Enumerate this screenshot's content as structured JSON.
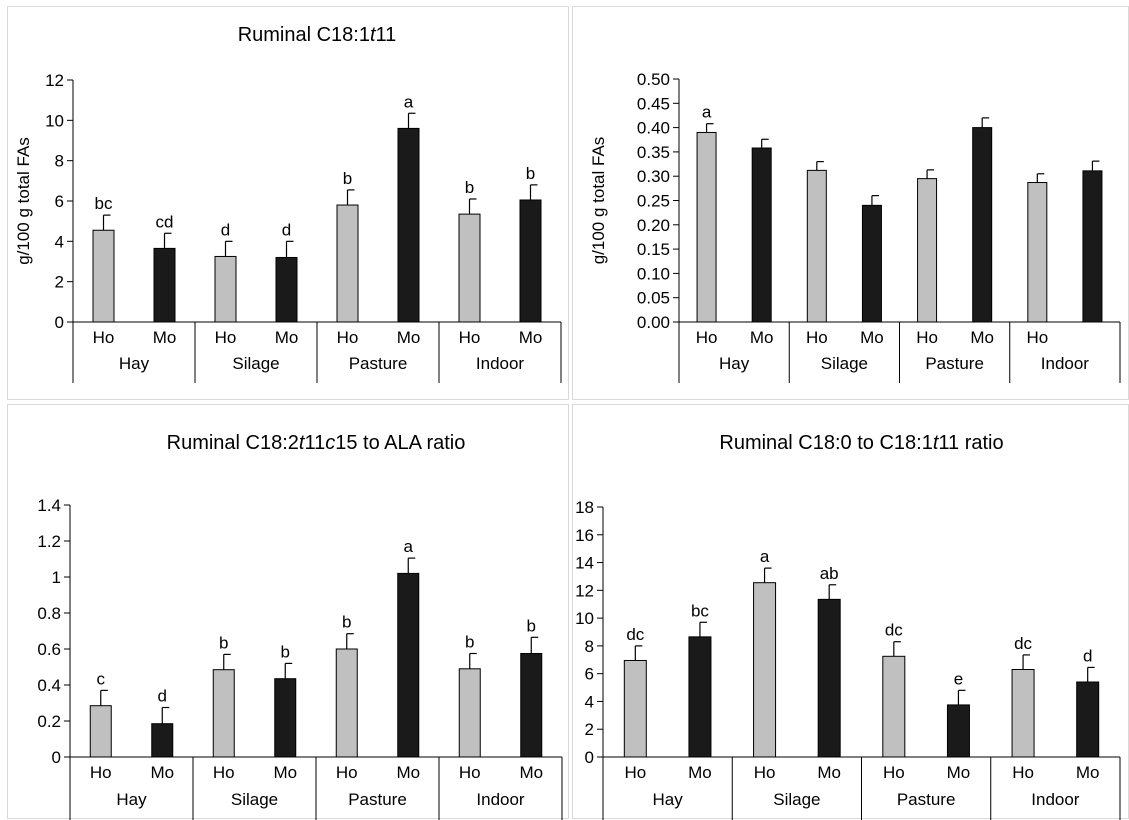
{
  "chart_data": [
    {
      "type": "bar",
      "title": "Ruminal C18:1t11",
      "title_parts": [
        "Ruminal C18:1",
        "t",
        "11"
      ],
      "ylabel": "g/100 g total FAs",
      "ylim": [
        0,
        12
      ],
      "yticks": [
        "0",
        "2",
        "4",
        "6",
        "8",
        "10",
        "12"
      ],
      "categories": [
        "Ho",
        "Mo",
        "Ho",
        "Mo",
        "Ho",
        "Mo",
        "Ho",
        "Mo"
      ],
      "groups": [
        "Hay",
        "Silage",
        "Pasture",
        "Indoor"
      ],
      "values": [
        4.55,
        3.65,
        3.25,
        3.2,
        5.8,
        9.6,
        5.35,
        6.05
      ],
      "errors": [
        0.75,
        0.75,
        0.75,
        0.8,
        0.75,
        0.75,
        0.75,
        0.75
      ],
      "letters": [
        "bc",
        "cd",
        "d",
        "d",
        "b",
        "a",
        "b",
        "b"
      ],
      "colors": [
        "#c0c0c0",
        "#1a1a1a",
        "#c0c0c0",
        "#1a1a1a",
        "#c0c0c0",
        "#1a1a1a",
        "#c0c0c0",
        "#1a1a1a"
      ],
      "grid": false
    },
    {
      "type": "bar",
      "title": "",
      "ylabel": "g/100 g total FAs",
      "ylim": [
        0,
        0.5
      ],
      "yticks": [
        "0.00",
        "0.05",
        "0.10",
        "0.15",
        "0.20",
        "0.25",
        "0.30",
        "0.35",
        "0.40",
        "0.45",
        "0.50"
      ],
      "categories": [
        "Ho",
        "Mo",
        "Ho",
        "Mo",
        "Ho",
        "Mo",
        "Ho",
        ""
      ],
      "groups": [
        "Hay",
        "Silage",
        "Pasture",
        "Indoor"
      ],
      "values": [
        0.39,
        0.358,
        0.312,
        0.24,
        0.295,
        0.4,
        0.287,
        0.311
      ],
      "errors": [
        0.018,
        0.018,
        0.018,
        0.02,
        0.018,
        0.02,
        0.018,
        0.02
      ],
      "letters": [
        "a",
        "",
        "",
        "",
        "",
        "",
        "",
        ""
      ],
      "colors": [
        "#c0c0c0",
        "#1a1a1a",
        "#c0c0c0",
        "#1a1a1a",
        "#c0c0c0",
        "#1a1a1a",
        "#c0c0c0",
        "#1a1a1a"
      ],
      "grid": false
    },
    {
      "type": "bar",
      "title": "Ruminal  C18:2t11c15 to ALA ratio",
      "title_parts": [
        "Ruminal  C18:2",
        "t",
        "11",
        "c",
        "15 to ALA ratio"
      ],
      "ylabel": "",
      "ylim": [
        0,
        1.4
      ],
      "yticks": [
        "0",
        "0.2",
        "0.4",
        "0.6",
        "0.8",
        "1",
        "1.2",
        "1.4"
      ],
      "categories": [
        "Ho",
        "Mo",
        "Ho",
        "Mo",
        "Ho",
        "Mo",
        "Ho",
        "Mo"
      ],
      "groups": [
        "Hay",
        "Silage",
        "Pasture",
        "Indoor"
      ],
      "values": [
        0.285,
        0.185,
        0.485,
        0.435,
        0.6,
        1.02,
        0.49,
        0.575
      ],
      "errors": [
        0.085,
        0.09,
        0.085,
        0.085,
        0.085,
        0.085,
        0.085,
        0.09
      ],
      "letters": [
        "c",
        "d",
        "b",
        "b",
        "b",
        "a",
        "b",
        "b"
      ],
      "colors": [
        "#c0c0c0",
        "#1a1a1a",
        "#c0c0c0",
        "#1a1a1a",
        "#c0c0c0",
        "#1a1a1a",
        "#c0c0c0",
        "#1a1a1a"
      ],
      "grid": false
    },
    {
      "type": "bar",
      "title": "Ruminal C18:0 to C18:1t11 ratio",
      "title_parts": [
        "Ruminal C18:0 to C18:1",
        "t",
        "11 ratio"
      ],
      "ylabel": "",
      "ylim": [
        0,
        18
      ],
      "yticks": [
        "0",
        "2",
        "4",
        "6",
        "8",
        "10",
        "12",
        "14",
        "16",
        "18"
      ],
      "categories": [
        "Ho",
        "Mo",
        "Ho",
        "Mo",
        "Ho",
        "Mo",
        "Ho",
        "Mo"
      ],
      "groups": [
        "Hay",
        "Silage",
        "Pasture",
        "Indoor"
      ],
      "values": [
        6.95,
        8.65,
        12.55,
        11.35,
        7.25,
        3.75,
        6.3,
        5.4
      ],
      "errors": [
        1.05,
        1.05,
        1.05,
        1.05,
        1.05,
        1.05,
        1.05,
        1.05
      ],
      "letters": [
        "dc",
        "bc",
        "a",
        "ab",
        "dc",
        "e",
        "dc",
        "d"
      ],
      "colors": [
        "#c0c0c0",
        "#1a1a1a",
        "#c0c0c0",
        "#1a1a1a",
        "#c0c0c0",
        "#1a1a1a",
        "#c0c0c0",
        "#1a1a1a"
      ],
      "grid": false
    }
  ]
}
